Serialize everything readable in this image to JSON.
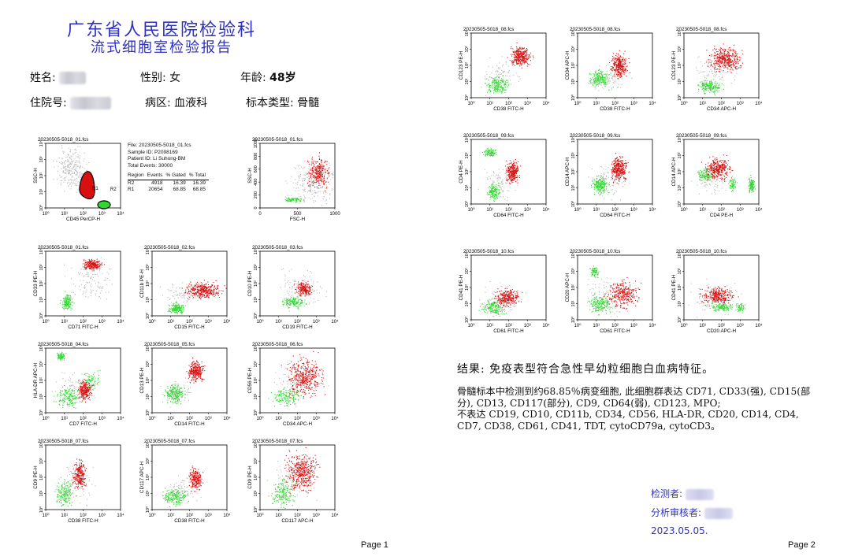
{
  "report": {
    "title_line1": "广东省人民医院检验科",
    "title_line2": "流式细胞室检验报告",
    "name_label": "姓名:",
    "gender_label": "性别:",
    "gender_value": "女",
    "age_label": "年龄:",
    "age_value": "48岁",
    "inpatient_label": "住院号:",
    "ward_label": "病区:",
    "ward_value": "血液科",
    "sample_label": "标本类型:",
    "sample_value": "骨髓"
  },
  "stats": {
    "file": "File: 20230505-5018_01.fcs",
    "sample_id": "Sample ID: P2098169",
    "patient_id": "Patient ID: Li Suhong-BM",
    "total_events": "Total Events: 30000",
    "headers": [
      "Region",
      "Events",
      "% Gated",
      "% Total"
    ],
    "rows": [
      [
        "R2",
        "4918",
        "16.39",
        "16.39"
      ],
      [
        "R1",
        "20654",
        "68.85",
        "68.85"
      ]
    ]
  },
  "colors": {
    "red": "#d81010",
    "green": "#2fd82f",
    "gray": "#b9b9b9",
    "title_blue": "#2e31c4"
  },
  "plots": [
    {
      "id": "p1",
      "page": 1,
      "title": "20230505-5018_01.fcs",
      "xlabel": "CD45 PerCP-H",
      "ylabel": "SSC-H",
      "type": "gate",
      "region_labels": [
        "R1",
        "R2"
      ]
    },
    {
      "id": "p2",
      "page": 1,
      "title": "20230505-5018_01.fcs",
      "xlabel": "FSC-H",
      "ylabel": "SSC-H",
      "type": "linear"
    },
    {
      "id": "p3",
      "page": 1,
      "title": "20230505-5018_01.fcs",
      "xlabel": "CD71 FITC-H",
      "ylabel": "CD33 PE-H",
      "type": "log"
    },
    {
      "id": "p4",
      "page": 1,
      "title": "20230505-5018_02.fcs",
      "xlabel": "CD15 FITC-H",
      "ylabel": "CD11b PE-H",
      "type": "log"
    },
    {
      "id": "p5",
      "page": 1,
      "title": "20230505-5018_03.fcs",
      "xlabel": "CD19 FITC-H",
      "ylabel": "CD10 PE-H",
      "type": "log"
    },
    {
      "id": "p6",
      "page": 1,
      "title": "20230505-5018_04.fcs",
      "xlabel": "CD7 FITC-H",
      "ylabel": "HLA-DR APC-H",
      "type": "log"
    },
    {
      "id": "p7",
      "page": 1,
      "title": "20230505-5018_05.fcs",
      "xlabel": "CD14 FITC-H",
      "ylabel": "CD13 PE-H",
      "type": "log"
    },
    {
      "id": "p8",
      "page": 1,
      "title": "20230505-5018_06.fcs",
      "xlabel": "CD34 APC-H",
      "ylabel": "CD56 PE-H",
      "type": "log"
    },
    {
      "id": "p9",
      "page": 1,
      "title": "20230505-5018_07.fcs",
      "xlabel": "CD38 FITC-H",
      "ylabel": "CD9 PE-H",
      "type": "log"
    },
    {
      "id": "p10",
      "page": 1,
      "title": "20230505-5018_07.fcs",
      "xlabel": "CD38 FITC-H",
      "ylabel": "CD117 APC-H",
      "type": "log"
    },
    {
      "id": "p11",
      "page": 1,
      "title": "20230505-5018_07.fcs",
      "xlabel": "CD117 APC-H",
      "ylabel": "CD9 PE-H",
      "type": "log"
    },
    {
      "id": "q1",
      "page": 2,
      "title": "20230505-5018_08.fcs",
      "xlabel": "CD38 FITC-H",
      "ylabel": "CD123 PE-H",
      "type": "log"
    },
    {
      "id": "q2",
      "page": 2,
      "title": "20230505-5018_08.fcs",
      "xlabel": "CD38 FITC-H",
      "ylabel": "CD34 APC-H",
      "type": "log"
    },
    {
      "id": "q3",
      "page": 2,
      "title": "20230505-5018_08.fcs",
      "xlabel": "CD34 APC-H",
      "ylabel": "CD123 PE-H",
      "type": "log"
    },
    {
      "id": "q4",
      "page": 2,
      "title": "20230505-5018_09.fcs",
      "xlabel": "CD64 FITC-H",
      "ylabel": "CD4 PE-H",
      "type": "log"
    },
    {
      "id": "q5",
      "page": 2,
      "title": "20230505-5018_09.fcs",
      "xlabel": "CD64 FITC-H",
      "ylabel": "CD14 APC-H",
      "type": "log"
    },
    {
      "id": "q6",
      "page": 2,
      "title": "20230505-5018_09.fcs",
      "xlabel": "CD4 PE-H",
      "ylabel": "CD14 APC-H",
      "type": "log"
    },
    {
      "id": "q7",
      "page": 2,
      "title": "20230505-5018_10.fcs",
      "xlabel": "CD61 FITC-H",
      "ylabel": "CD41 PE-H",
      "type": "log"
    },
    {
      "id": "q8",
      "page": 2,
      "title": "20230505-5018_10.fcs",
      "xlabel": "CD61 FITC-H",
      "ylabel": "CD20 APC-H",
      "type": "log"
    },
    {
      "id": "q9",
      "page": 2,
      "title": "20230505-5018_10.fcs",
      "xlabel": "CD20 APC-H",
      "ylabel": "CD41 PE-H",
      "type": "log"
    }
  ],
  "conclusion": {
    "title": "结果: 免疫表型符合急性早幼粒细胞白血病特征。",
    "line1": "骨髓标本中检测到约68.85％病变细胞, 此细胞群表达 CD71, CD33(强), CD15(部分), CD13, CD117(部分), CD9, CD64(弱), CD123, MPO;",
    "line2": "不表达 CD19, CD10, CD11b, CD34, CD56, HLA-DR, CD20, CD14, CD4, CD7, CD38, CD61, CD41, TDT, cytoCD79a, cytoCD3。"
  },
  "signature": {
    "tester_label": "检测者:",
    "reviewer_label": "分析审核者:",
    "date": "2023.05.05."
  },
  "pages": {
    "page1": "Page 1",
    "page2": "Page 2"
  }
}
